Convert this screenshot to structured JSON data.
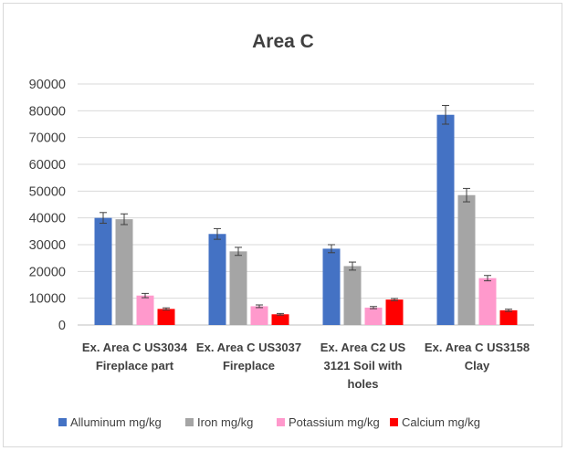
{
  "chart_data": {
    "type": "bar",
    "title": "Area C",
    "categories": [
      [
        "Ex. Area C US3034",
        "Fireplace part"
      ],
      [
        "Ex. Area C US3037",
        "Fireplace"
      ],
      [
        "Ex. Area C2 US",
        "3121 Soil with",
        "holes"
      ],
      [
        "Ex. Area C US3158",
        "Clay"
      ]
    ],
    "ylim": [
      0,
      90000
    ],
    "yticks": [
      0,
      10000,
      20000,
      30000,
      40000,
      50000,
      60000,
      70000,
      80000,
      90000
    ],
    "grid": true,
    "legend_position": "bottom",
    "series": [
      {
        "name": "Alluminum mg/kg",
        "color": "#4472C4",
        "values": [
          40000,
          34000,
          28500,
          78500
        ],
        "errors": [
          2000,
          2000,
          1500,
          3500
        ]
      },
      {
        "name": "Iron mg/kg",
        "color": "#A5A5A5",
        "values": [
          39500,
          27500,
          22000,
          48500
        ],
        "errors": [
          2000,
          1500,
          1500,
          2500
        ]
      },
      {
        "name": "Potassium mg/kg",
        "color": "#FF99CC",
        "values": [
          11000,
          7000,
          6500,
          17500
        ],
        "errors": [
          800,
          500,
          400,
          1000
        ]
      },
      {
        "name": "Calcium mg/kg",
        "color": "#FF0000",
        "values": [
          6000,
          4000,
          9500,
          5500
        ],
        "errors": [
          400,
          300,
          400,
          400
        ]
      }
    ]
  }
}
